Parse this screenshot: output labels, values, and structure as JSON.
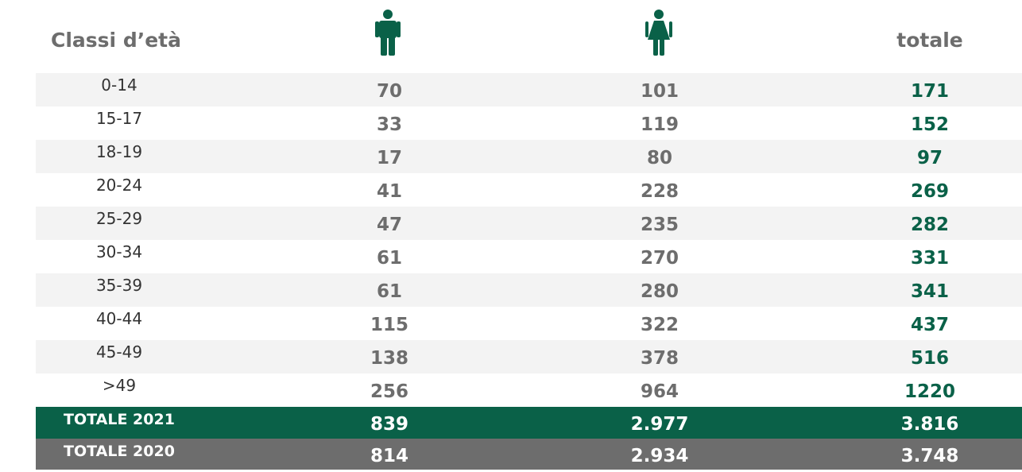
{
  "table": {
    "header": [
      "Classi d’età",
      "totale"
    ],
    "rows": [
      [
        "0-14",
        "70",
        "101",
        "171"
      ],
      [
        "15-17",
        "33",
        "119",
        "152"
      ],
      [
        "18-19",
        "17",
        "80",
        "97"
      ],
      [
        "20-24",
        "41",
        "228",
        "269"
      ],
      [
        "25-29",
        "47",
        "235",
        "282"
      ],
      [
        "30-34",
        "61",
        "270",
        "331"
      ],
      [
        "35-39",
        "61",
        "280",
        "341"
      ],
      [
        "40-44",
        "115",
        "322",
        "437"
      ],
      [
        "45-49",
        "138",
        "378",
        "516"
      ],
      [
        ">49",
        "256",
        "964",
        "1220"
      ]
    ],
    "totals": [
      [
        "TOTALE 2021",
        "839",
        "2.977",
        "3.816"
      ],
      [
        "TOTALE 2020",
        "814",
        "2.934",
        "3.748"
      ]
    ]
  }
}
